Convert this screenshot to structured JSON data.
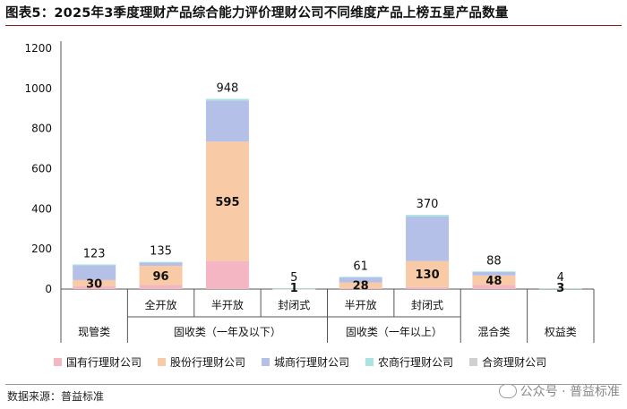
{
  "header": {
    "title": "图表5：2025年3季度理财产品综合能力评价理财公司不同维度产品上榜五星产品数量"
  },
  "footer": {
    "source": "数据来源：普益标准",
    "watermark": "公众号 · 普益标准",
    "watermark_icon": "wechat-icon"
  },
  "chart_data": {
    "type": "bar",
    "stacked": true,
    "title": "",
    "xlabel": "",
    "ylabel": "",
    "ylim": [
      0,
      1200
    ],
    "yticks": [
      0,
      200,
      400,
      600,
      800,
      1000,
      1200
    ],
    "grid": false,
    "legend_position": "bottom",
    "categories": [
      "现管类",
      "全开放",
      "半开放",
      "封闭式",
      "半开放",
      "封闭式",
      "混合类",
      "权益类"
    ],
    "groups": [
      {
        "label": "现管类",
        "members": [
          0
        ]
      },
      {
        "label": "固收类（一年及以下）",
        "members": [
          1,
          2,
          3
        ]
      },
      {
        "label": "固收类（一年以上）",
        "members": [
          4,
          5
        ]
      },
      {
        "label": "混合类",
        "members": [
          6
        ]
      },
      {
        "label": "权益类",
        "members": [
          7
        ]
      }
    ],
    "sub_labels": [
      "",
      "全开放",
      "半开放",
      "封闭式",
      "半开放",
      "封闭式",
      "",
      ""
    ],
    "series": [
      {
        "name": "国有行理财公司",
        "color": "#f4b6c2",
        "values": [
          15,
          20,
          140,
          0,
          5,
          10,
          20,
          0
        ]
      },
      {
        "name": "股份行理财公司",
        "color": "#f8cba6",
        "values": [
          30,
          96,
          595,
          1,
          28,
          130,
          48,
          3
        ]
      },
      {
        "name": "城商行理财公司",
        "color": "#b4c0e8",
        "values": [
          73,
          17,
          205,
          2,
          26,
          222,
          18,
          0
        ]
      },
      {
        "name": "农商行理财公司",
        "color": "#a9e4e0",
        "values": [
          5,
          2,
          8,
          2,
          2,
          8,
          2,
          1
        ]
      },
      {
        "name": "合资理财公司",
        "color": "#d0d0d0",
        "values": [
          0,
          0,
          0,
          0,
          0,
          0,
          0,
          0
        ]
      }
    ],
    "labeled_series_index": 1,
    "totals": [
      123,
      135,
      948,
      5,
      61,
      370,
      88,
      4
    ]
  }
}
